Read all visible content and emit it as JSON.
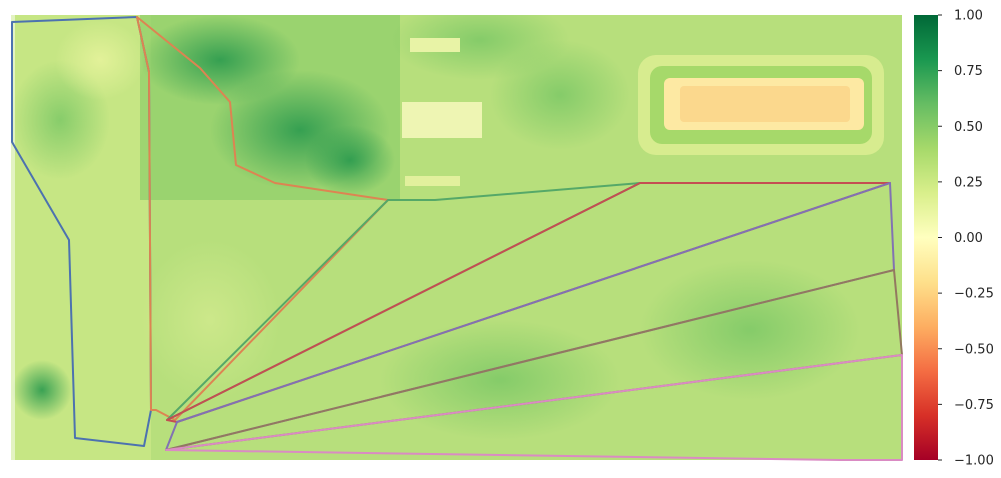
{
  "chart_data": {
    "type": "heatmap",
    "title": "",
    "xlabel": "",
    "ylabel": "",
    "colormap": "RdYlGn",
    "vmin": -1.0,
    "vmax": 1.0,
    "colorbar": {
      "ticks": [
        1.0,
        0.75,
        0.5,
        0.25,
        0.0,
        -0.25,
        -0.5,
        -0.75,
        -1.0
      ],
      "tick_labels": [
        "1.00",
        "0.75",
        "0.50",
        "0.25",
        "0.00",
        "−0.25",
        "−0.50",
        "−0.75",
        "−1.00"
      ]
    },
    "overlays": [
      {
        "id": "field-1",
        "color": "#4c72b0"
      },
      {
        "id": "field-2",
        "color": "#dd8452"
      },
      {
        "id": "field-3",
        "color": "#55a868"
      },
      {
        "id": "field-4",
        "color": "#c44e52"
      },
      {
        "id": "field-5",
        "color": "#8172b3"
      },
      {
        "id": "field-6",
        "color": "#937860"
      },
      {
        "id": "field-7",
        "color": "#da8bc3"
      }
    ]
  }
}
